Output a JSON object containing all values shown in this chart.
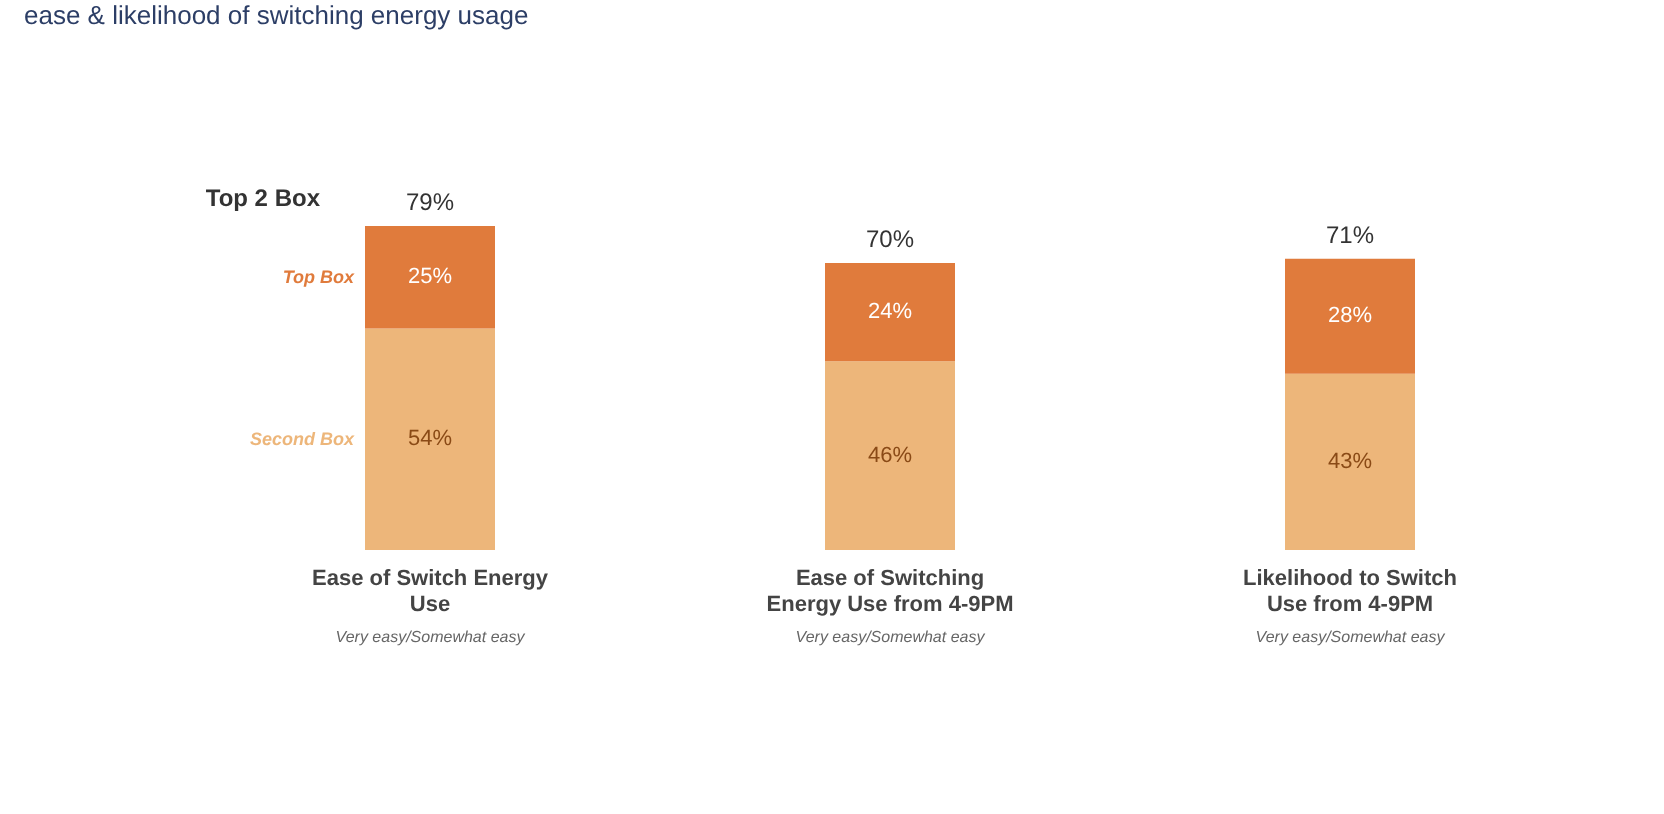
{
  "chart_data": {
    "type": "bar",
    "title": "ease & likelihood of switching energy usage",
    "categories": [
      "Ease of Switch Energy Use",
      "Ease of Switching Energy Use from 4-9PM",
      "Likelihood to Switch Use from 4-9PM"
    ],
    "stacked": true,
    "legend": false,
    "series": [
      {
        "name": "Second Box",
        "color": "#edb67a",
        "values": [
          54,
          46,
          43
        ],
        "value_labels": [
          "54%",
          "46%",
          "43%"
        ]
      },
      {
        "name": "Top Box",
        "color": "#e07b3c",
        "values": [
          25,
          24,
          28
        ],
        "value_labels": [
          "25%",
          "24%",
          "28%"
        ]
      }
    ],
    "totals": [
      "79%",
      "70%",
      "71%"
    ],
    "annotations": [
      "Top 2 Box",
      "Very easy/Somewhat easy",
      "Very easy/Somewhat easy",
      "Very easy/Somewhat easy"
    ]
  }
}
